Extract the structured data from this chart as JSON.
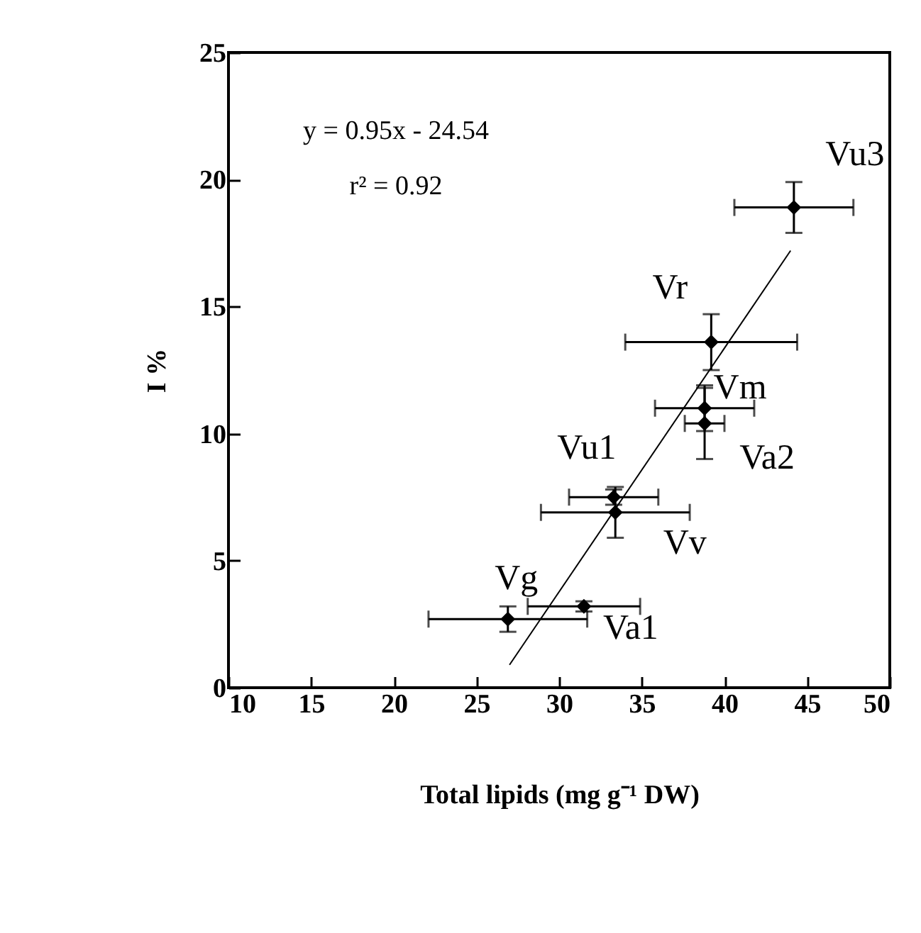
{
  "chart_data": {
    "type": "scatter",
    "xlabel": "Total lipids (mg g⁻¹ DW)",
    "ylabel": "I %",
    "x": [
      44.2,
      39.2,
      38.8,
      38.8,
      33.3,
      33.4,
      26.9,
      31.5
    ],
    "series": [
      {
        "color": "#000000",
        "marker": "diamond",
        "values": [
          18.9,
          13.6,
          11.0,
          10.4,
          7.5,
          6.9,
          2.7,
          3.2
        ],
        "errors": [
          1.0,
          1.1,
          0.9,
          1.4,
          0.3,
          1.0,
          0.5,
          0.2
        ],
        "xerrors": [
          3.6,
          5.2,
          3.0,
          1.2,
          2.7,
          4.5,
          4.8,
          3.4
        ]
      },
      {
        "type": "line",
        "color": "#000000",
        "line_style": "solid",
        "x": [
          27,
          44
        ],
        "values": [
          0.9,
          17.2
        ]
      }
    ],
    "xlim": [
      10,
      50
    ],
    "xticks": [
      10,
      15,
      20,
      25,
      30,
      35,
      40,
      45,
      50
    ],
    "ylim": [
      0,
      25
    ],
    "yticks": [
      0,
      5,
      10,
      15,
      20,
      25
    ],
    "grid": false,
    "annotations": [
      "y = 0.95x - 24.54",
      "r² = 0.92",
      {
        "text": "Vu3",
        "x": 44.2,
        "y": 18.9
      },
      {
        "text": "Vr",
        "x": 39.2,
        "y": 13.6
      },
      {
        "text": "Vm",
        "x": 38.8,
        "y": 11.0
      },
      {
        "text": "Va2",
        "x": 38.8,
        "y": 10.4
      },
      {
        "text": "Vu1",
        "x": 33.3,
        "y": 7.5
      },
      {
        "text": "Vv",
        "x": 33.4,
        "y": 6.9
      },
      {
        "text": "Vg",
        "x": 26.9,
        "y": 2.7
      },
      {
        "text": "Va1",
        "x": 31.5,
        "y": 3.2
      }
    ]
  }
}
